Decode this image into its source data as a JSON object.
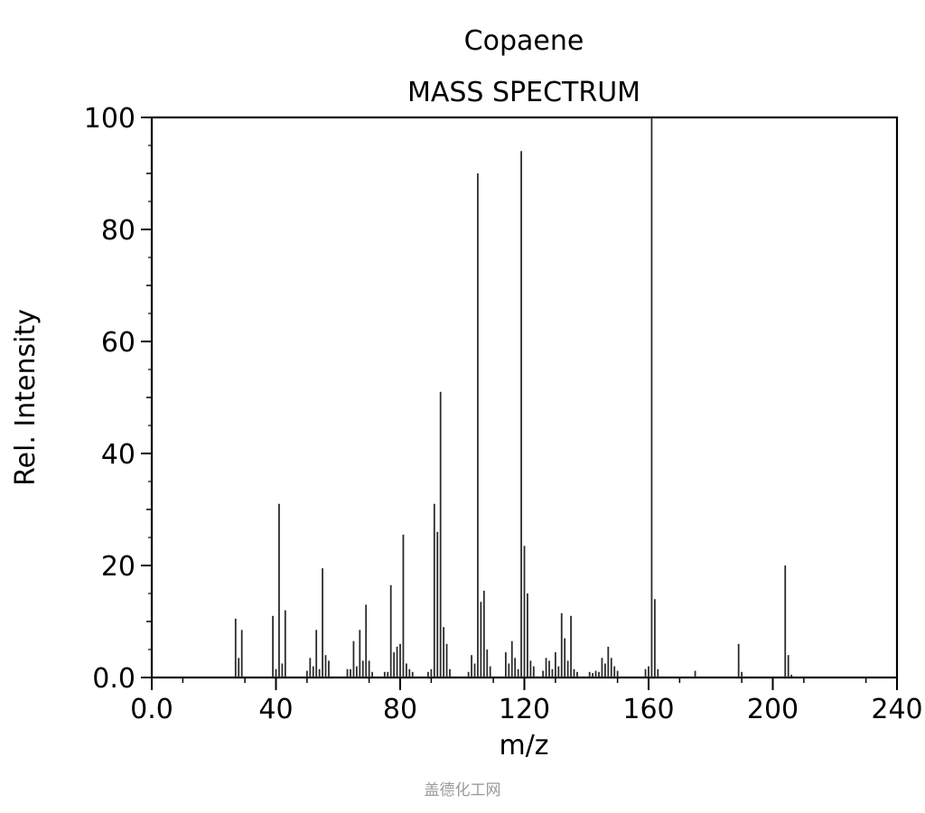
{
  "chart_data": {
    "type": "bar",
    "title": "Copaene",
    "subtitle": "MASS SPECTRUM",
    "xlabel": "m/z",
    "ylabel": "Rel. Intensity",
    "xlim": [
      0,
      240
    ],
    "ylim": [
      0,
      100
    ],
    "x_ticks": [
      "0.0",
      "40",
      "80",
      "120",
      "160",
      "200",
      "240"
    ],
    "y_ticks": [
      "0.0",
      "20",
      "40",
      "60",
      "80",
      "100"
    ],
    "grid": false,
    "legend": "none",
    "bar_color": "#2b2b2b",
    "series": [
      {
        "x": [
          27,
          28,
          29,
          39,
          40,
          41,
          42,
          43,
          50,
          51,
          52,
          53,
          54,
          55,
          56,
          57,
          63,
          64,
          65,
          66,
          67,
          68,
          69,
          70,
          71,
          75,
          76,
          77,
          78,
          79,
          80,
          81,
          82,
          83,
          84,
          89,
          90,
          91,
          92,
          93,
          94,
          95,
          96,
          102,
          103,
          104,
          105,
          106,
          107,
          108,
          109,
          114,
          115,
          116,
          117,
          118,
          119,
          120,
          121,
          122,
          123,
          126,
          127,
          128,
          129,
          130,
          131,
          132,
          133,
          134,
          135,
          136,
          137,
          141,
          142,
          143,
          144,
          145,
          146,
          147,
          148,
          149,
          150,
          159,
          160,
          161,
          162,
          163,
          175,
          189,
          190,
          204,
          205,
          206
        ],
        "values": [
          10.5,
          3.5,
          8.5,
          11,
          1.5,
          31,
          2.5,
          12,
          1.2,
          3.5,
          2.0,
          8.5,
          1.5,
          19.5,
          4,
          3,
          1.5,
          1.5,
          6.5,
          2.0,
          8.5,
          3,
          13,
          3,
          1.0,
          1.0,
          1.0,
          16.5,
          4.5,
          5.5,
          6,
          25.5,
          2.5,
          1.5,
          1.0,
          1.0,
          1.5,
          31,
          26,
          51,
          9,
          6,
          1.5,
          1.0,
          4,
          2.5,
          90,
          13.5,
          15.5,
          5,
          2.0,
          4.5,
          2.5,
          6.5,
          3.5,
          1.5,
          94,
          23.5,
          15,
          3,
          2,
          1.2,
          3.5,
          3,
          1.5,
          4.5,
          2.0,
          11.5,
          7,
          3,
          11,
          1.5,
          1.0,
          1.0,
          0.8,
          1.2,
          1.0,
          3.5,
          2.5,
          5.5,
          3.5,
          2.0,
          1.2,
          1.5,
          2.0,
          100,
          14,
          1.5,
          1.2,
          6,
          1.0,
          20,
          4,
          0.5
        ]
      }
    ]
  },
  "watermark": "盖德化工网"
}
